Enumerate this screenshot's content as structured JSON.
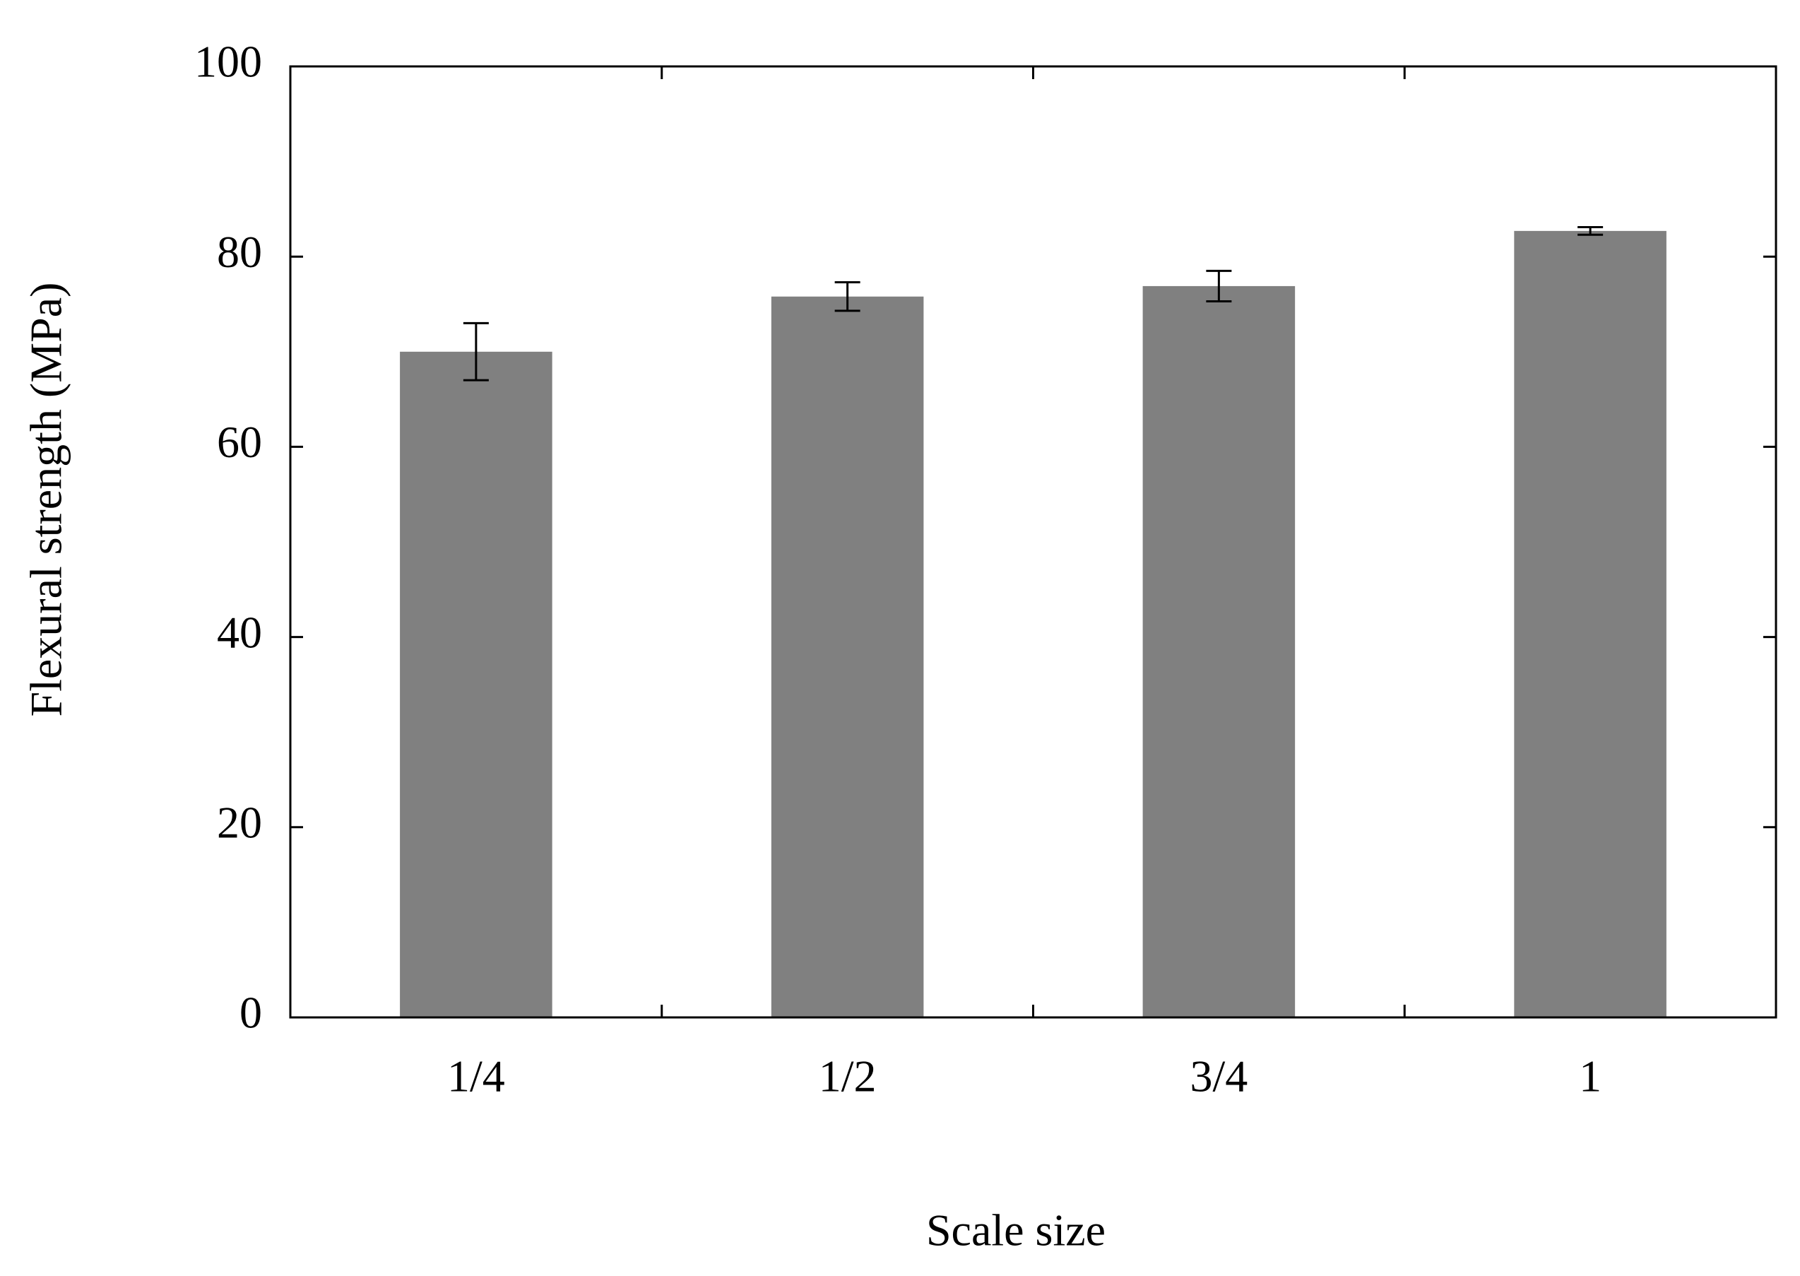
{
  "chart_data": {
    "type": "bar",
    "x_label": "Scale size",
    "y_label": "Flexural strength (MPa)",
    "categories": [
      "1/4",
      "1/2",
      "3/4",
      "1"
    ],
    "values": [
      70,
      75.8,
      76.9,
      82.7
    ],
    "errors": [
      3,
      1.5,
      1.6,
      0.4
    ],
    "color": "#808080",
    "ylim": [
      0,
      100
    ],
    "yticks": [
      0,
      20,
      40,
      60,
      80,
      100
    ],
    "grid": false
  }
}
